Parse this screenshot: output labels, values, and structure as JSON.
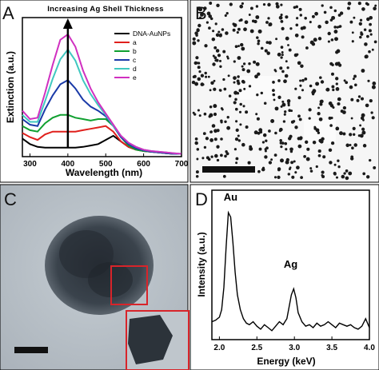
{
  "panels": {
    "a_letter": "A",
    "b_letter": "B",
    "c_letter": "C",
    "d_letter": "D"
  },
  "chart_data": [
    {
      "panel": "A",
      "type": "line",
      "title": "Increasing Ag Shell Thickness",
      "xlabel": "Wavelength (nm)",
      "ylabel": "Extinction (a.u.)",
      "xlim": [
        280,
        700
      ],
      "ylim": [
        0,
        1
      ],
      "xticks": [
        300,
        400,
        500,
        600,
        700
      ],
      "legend_position": "top-right",
      "x": [
        280,
        300,
        320,
        340,
        360,
        380,
        400,
        420,
        440,
        460,
        480,
        500,
        520,
        540,
        560,
        580,
        600,
        620,
        640,
        660,
        680,
        700
      ],
      "series": [
        {
          "name": "DNA-AuNPs",
          "color": "#000000",
          "values": [
            0.13,
            0.09,
            0.07,
            0.065,
            0.065,
            0.065,
            0.065,
            0.065,
            0.07,
            0.08,
            0.09,
            0.12,
            0.15,
            0.11,
            0.07,
            0.05,
            0.04,
            0.035,
            0.03,
            0.025,
            0.02,
            0.02
          ]
        },
        {
          "name": "a",
          "color": "#e0201c",
          "values": [
            0.17,
            0.14,
            0.12,
            0.16,
            0.18,
            0.18,
            0.18,
            0.18,
            0.19,
            0.2,
            0.21,
            0.22,
            0.18,
            0.11,
            0.07,
            0.05,
            0.04,
            0.035,
            0.03,
            0.025,
            0.02,
            0.02
          ]
        },
        {
          "name": "b",
          "color": "#10a030",
          "values": [
            0.22,
            0.19,
            0.18,
            0.24,
            0.28,
            0.3,
            0.3,
            0.28,
            0.27,
            0.26,
            0.27,
            0.27,
            0.22,
            0.14,
            0.08,
            0.05,
            0.04,
            0.035,
            0.03,
            0.025,
            0.02,
            0.02
          ]
        },
        {
          "name": "c",
          "color": "#1a3aa8",
          "values": [
            0.27,
            0.23,
            0.22,
            0.34,
            0.44,
            0.52,
            0.55,
            0.49,
            0.41,
            0.36,
            0.33,
            0.29,
            0.22,
            0.14,
            0.09,
            0.06,
            0.045,
            0.035,
            0.03,
            0.025,
            0.02,
            0.02
          ]
        },
        {
          "name": "d",
          "color": "#40c8c0",
          "values": [
            0.3,
            0.25,
            0.25,
            0.4,
            0.56,
            0.7,
            0.77,
            0.69,
            0.55,
            0.45,
            0.37,
            0.3,
            0.22,
            0.15,
            0.1,
            0.07,
            0.05,
            0.04,
            0.035,
            0.03,
            0.025,
            0.02
          ]
        },
        {
          "name": "e",
          "color": "#d030c0",
          "values": [
            0.33,
            0.27,
            0.28,
            0.46,
            0.66,
            0.84,
            0.88,
            0.79,
            0.62,
            0.49,
            0.39,
            0.31,
            0.23,
            0.15,
            0.1,
            0.07,
            0.05,
            0.04,
            0.035,
            0.03,
            0.025,
            0.02
          ]
        }
      ],
      "arrow_x": 400
    },
    {
      "panel": "D",
      "type": "line",
      "xlabel": "Energy (keV)",
      "ylabel": "Intensity (a.u.)",
      "xlim": [
        1.9,
        4.0
      ],
      "ylim": [
        0,
        1
      ],
      "xticks": [
        "2.0",
        "2.5",
        "3.0",
        "3.5",
        "4.0"
      ],
      "annotations": [
        {
          "text": "Au",
          "x": 2.15,
          "y": 0.93
        },
        {
          "text": "Ag",
          "x": 2.95,
          "y": 0.48
        }
      ],
      "x": [
        1.9,
        1.95,
        2.0,
        2.03,
        2.06,
        2.09,
        2.12,
        2.15,
        2.18,
        2.21,
        2.24,
        2.28,
        2.32,
        2.36,
        2.4,
        2.45,
        2.5,
        2.55,
        2.6,
        2.65,
        2.7,
        2.75,
        2.8,
        2.85,
        2.9,
        2.93,
        2.96,
        2.99,
        3.02,
        3.05,
        3.1,
        3.15,
        3.2,
        3.25,
        3.3,
        3.35,
        3.4,
        3.45,
        3.5,
        3.55,
        3.6,
        3.65,
        3.7,
        3.75,
        3.8,
        3.85,
        3.9,
        3.95,
        4.0
      ],
      "values": [
        0.12,
        0.13,
        0.15,
        0.2,
        0.35,
        0.62,
        0.85,
        0.82,
        0.65,
        0.45,
        0.3,
        0.2,
        0.14,
        0.11,
        0.1,
        0.12,
        0.09,
        0.07,
        0.1,
        0.08,
        0.06,
        0.09,
        0.12,
        0.1,
        0.14,
        0.22,
        0.3,
        0.34,
        0.28,
        0.18,
        0.12,
        0.09,
        0.1,
        0.08,
        0.11,
        0.09,
        0.1,
        0.12,
        0.1,
        0.08,
        0.11,
        0.1,
        0.09,
        0.1,
        0.08,
        0.07,
        0.09,
        0.14,
        0.08
      ]
    }
  ]
}
